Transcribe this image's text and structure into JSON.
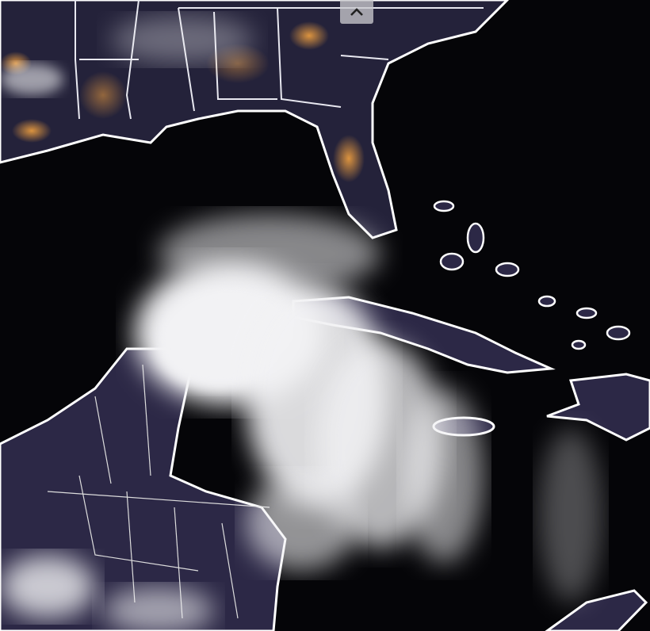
{
  "viewer": {
    "image_kind": "satellite night-time composite",
    "collapse_button": {
      "icon": "chevron-up-icon"
    }
  },
  "colors": {
    "ocean": "#050508",
    "land": "#2a2640",
    "borders": "#ffffff",
    "city_lights": "#d98a3a",
    "clouds": "#f2f2f4"
  }
}
